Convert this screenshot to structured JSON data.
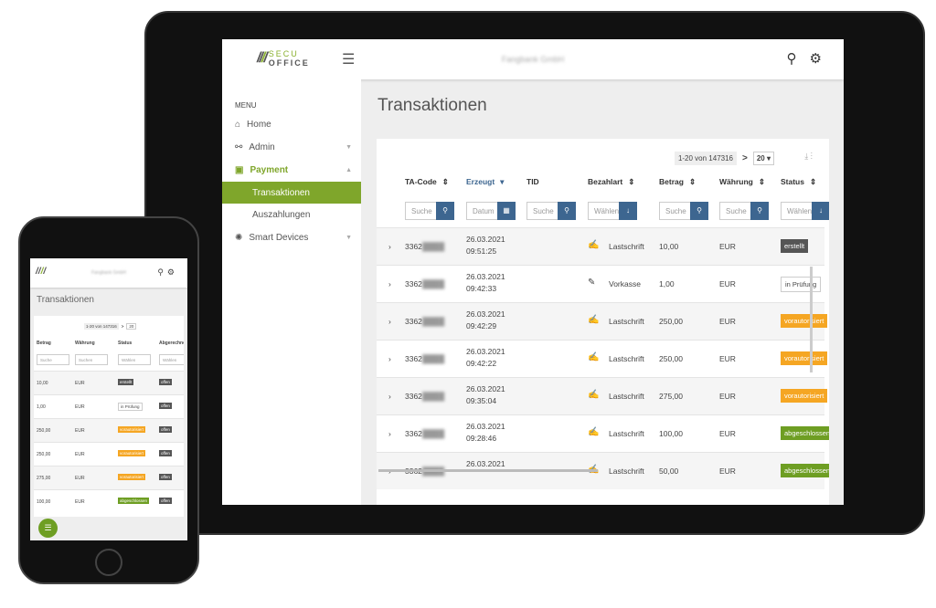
{
  "app": {
    "logo_top": "SECU",
    "logo_bottom": "OFFICE",
    "company": "Fangbank GmbH"
  },
  "menu": {
    "label": "MENU",
    "items": [
      {
        "label": "Home",
        "icon": "home-icon"
      },
      {
        "label": "Admin",
        "icon": "admin-icon"
      },
      {
        "label": "Payment",
        "icon": "payment-icon"
      },
      {
        "label": "Transaktionen"
      },
      {
        "label": "Auszahlungen"
      },
      {
        "label": "Smart Devices",
        "icon": "smart-devices-icon"
      }
    ]
  },
  "page": {
    "title": "Transaktionen"
  },
  "pager": {
    "range": "1-20 von 147316",
    "per_page": "20"
  },
  "columns": [
    "TA-Code",
    "Erzeugt",
    "TID",
    "Bezahlart",
    "Betrag",
    "Währung",
    "Status"
  ],
  "filters": [
    "Suche",
    "Datum",
    "Suche",
    "Wählen",
    "Suche",
    "Suche",
    "Wählen"
  ],
  "rows": [
    {
      "code": "3362",
      "date": "26.03.2021",
      "time": "09:51:25",
      "method": "Lastschrift",
      "amount": "10,00",
      "currency": "EUR",
      "status": "erstellt",
      "status_class": "b-erstellt",
      "billed": "offen"
    },
    {
      "code": "3362",
      "date": "26.03.2021",
      "time": "09:42:33",
      "method": "Vorkasse",
      "amount": "1,00",
      "currency": "EUR",
      "status": "in Prüfung",
      "status_class": "b-pruefung",
      "billed": "offen"
    },
    {
      "code": "3362",
      "date": "26.03.2021",
      "time": "09:42:29",
      "method": "Lastschrift",
      "amount": "250,00",
      "currency": "EUR",
      "status": "vorautorisiert",
      "status_class": "b-vor",
      "billed": "offen"
    },
    {
      "code": "3362",
      "date": "26.03.2021",
      "time": "09:42:22",
      "method": "Lastschrift",
      "amount": "250,00",
      "currency": "EUR",
      "status": "vorautorisiert",
      "status_class": "b-vor",
      "billed": "offen"
    },
    {
      "code": "3362",
      "date": "26.03.2021",
      "time": "09:35:04",
      "method": "Lastschrift",
      "amount": "275,00",
      "currency": "EUR",
      "status": "vorautorisiert",
      "status_class": "b-vor",
      "billed": "offen"
    },
    {
      "code": "3362",
      "date": "26.03.2021",
      "time": "09:28:46",
      "method": "Lastschrift",
      "amount": "100,00",
      "currency": "EUR",
      "status": "abgeschlossen",
      "status_class": "b-abg",
      "billed": "offen"
    },
    {
      "code": "3362",
      "date": "26.03.2021",
      "time": "",
      "method": "Lastschrift",
      "amount": "50,00",
      "currency": "EUR",
      "status": "abgeschlossen",
      "status_class": "b-abg",
      "billed": "offen"
    }
  ],
  "phone": {
    "columns": [
      "Betrag",
      "Währung",
      "Status",
      "Abgerechnet"
    ],
    "filters": [
      "Suche",
      "Suchen",
      "Wählen",
      "Wählen"
    ]
  }
}
